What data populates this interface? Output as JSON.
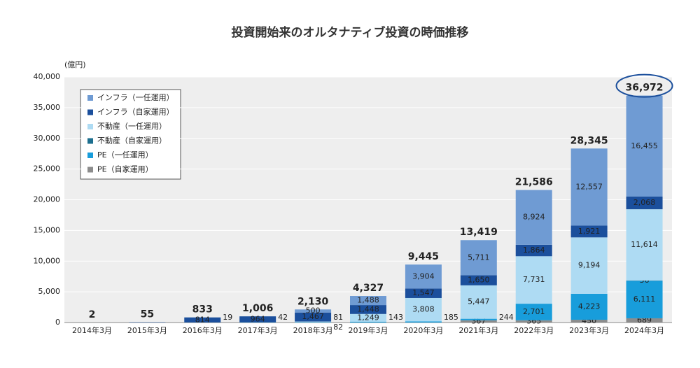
{
  "chart_data": {
    "type": "stacked_bar",
    "title": "投資開始来のオルタナティブ投資の時価推移",
    "y_unit": "(億円)",
    "categories": [
      "2014年3月",
      "2015年3月",
      "2016年3月",
      "2017年3月",
      "2018年3月",
      "2019年3月",
      "2020年3月",
      "2021年3月",
      "2022年3月",
      "2023年3月",
      "2024年3月"
    ],
    "series": [
      {
        "name": "インフラ（一任運用）",
        "color": "#6f9bd3",
        "values": [
          null,
          null,
          null,
          null,
          500,
          1488,
          3904,
          5711,
          8924,
          12557,
          16455
        ],
        "value_labels": [
          null,
          null,
          null,
          null,
          "500",
          "1,488",
          "3,904",
          "5,711",
          "8,924",
          "12,557",
          "16,455"
        ]
      },
      {
        "name": "インフラ（自家運用）",
        "color": "#1b4f9c",
        "values": [
          2,
          55,
          814,
          964,
          1467,
          1448,
          1547,
          1650,
          1864,
          1921,
          2068
        ],
        "value_labels": [
          null,
          null,
          "814",
          "964",
          "1,467",
          "1,448",
          "1,547",
          "1,650",
          "1,864",
          "1,921",
          "2,068"
        ]
      },
      {
        "name": "不動産（一任運用）",
        "color": "#aedbf3",
        "values": [
          null,
          null,
          null,
          null,
          82,
          1249,
          3808,
          5447,
          7731,
          9194,
          11614
        ],
        "value_labels": [
          null,
          null,
          null,
          null,
          "82",
          "1,249",
          "3,808",
          "5,447",
          "7,731",
          "9,194",
          "11,614"
        ]
      },
      {
        "name": "不動産（自家運用）",
        "color": "#1d6f8f",
        "values": [
          null,
          null,
          null,
          null,
          null,
          null,
          null,
          null,
          null,
          null,
          36
        ],
        "value_labels": [
          null,
          null,
          null,
          null,
          null,
          null,
          null,
          null,
          null,
          null,
          "36"
        ]
      },
      {
        "name": "PE（一任運用）",
        "color": "#189ddb",
        "values": [
          null,
          null,
          19,
          42,
          81,
          143,
          185,
          244,
          2701,
          4223,
          6111
        ],
        "value_labels": [
          null,
          null,
          "19",
          "42",
          "81",
          "143",
          "185",
          "244",
          "2,701",
          "4,223",
          "6,111"
        ]
      },
      {
        "name": "PE（自家運用）",
        "color": "#8c8c8c",
        "values": [
          null,
          null,
          null,
          null,
          null,
          null,
          null,
          367,
          365,
          450,
          689
        ],
        "value_labels": [
          null,
          null,
          null,
          null,
          null,
          null,
          null,
          "367",
          "365",
          "450",
          "689"
        ]
      }
    ],
    "totals": [
      2,
      55,
      833,
      1006,
      2130,
      4327,
      9445,
      13419,
      21586,
      28345,
      36972
    ],
    "total_labels": [
      "2",
      "55",
      "833",
      "1,006",
      "2,130",
      "4,327",
      "9,445",
      "13,419",
      "21,586",
      "28,345",
      "36,972"
    ],
    "ylim": [
      0,
      40000
    ],
    "yticks": [
      0,
      {
        "value": 5000,
        "label": "5,000"
      },
      {
        "value": 10000,
        "label": "10,000"
      },
      {
        "value": 15000,
        "label": "15,000"
      },
      {
        "value": 20000,
        "label": "20,000"
      },
      {
        "value": 25000,
        "label": "25,000"
      },
      {
        "value": 30000,
        "label": "30,000"
      },
      {
        "value": 35000,
        "label": "35,000"
      },
      {
        "value": 40000,
        "label": "40,000"
      }
    ],
    "grid": true,
    "legend": "upper left"
  }
}
